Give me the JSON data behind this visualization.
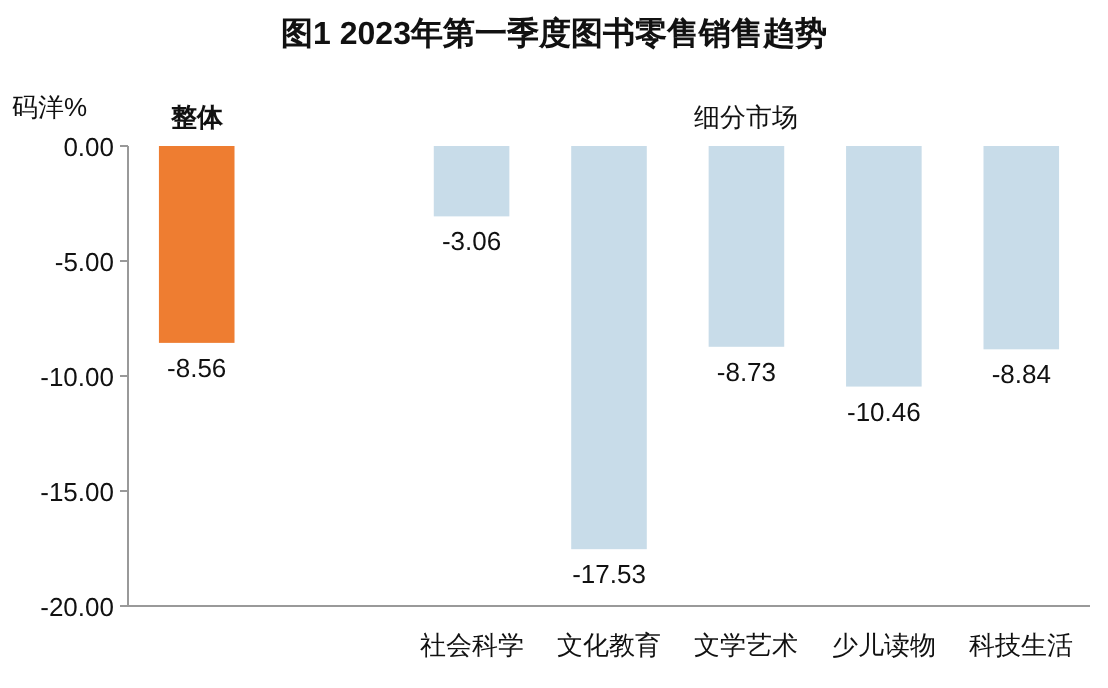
{
  "chart_data": {
    "type": "bar",
    "title": "图1  2023年第一季度图书零售销售趋势",
    "ylabel": "码洋%",
    "categories": [
      "整体",
      null,
      "社会科学",
      "文化教育",
      "文学艺术",
      "少儿读物",
      "科技生活"
    ],
    "values": [
      -8.56,
      null,
      -3.06,
      -17.53,
      -8.73,
      -10.46,
      -8.84
    ],
    "colors": [
      "#ee7d31",
      null,
      "#c8dce9",
      "#c8dce9",
      "#c8dce9",
      "#c8dce9",
      "#c8dce9"
    ],
    "ylim": [
      -20,
      0
    ],
    "yticks": [
      {
        "value": 0,
        "label": "0.00"
      },
      {
        "value": -5,
        "label": "-5.00"
      },
      {
        "value": -10,
        "label": "-10.00"
      },
      {
        "value": -15,
        "label": "-15.00"
      },
      {
        "value": -20,
        "label": "-20.00"
      }
    ],
    "data_labels": true,
    "grid": false,
    "annotations": [
      "细分市场"
    ]
  }
}
